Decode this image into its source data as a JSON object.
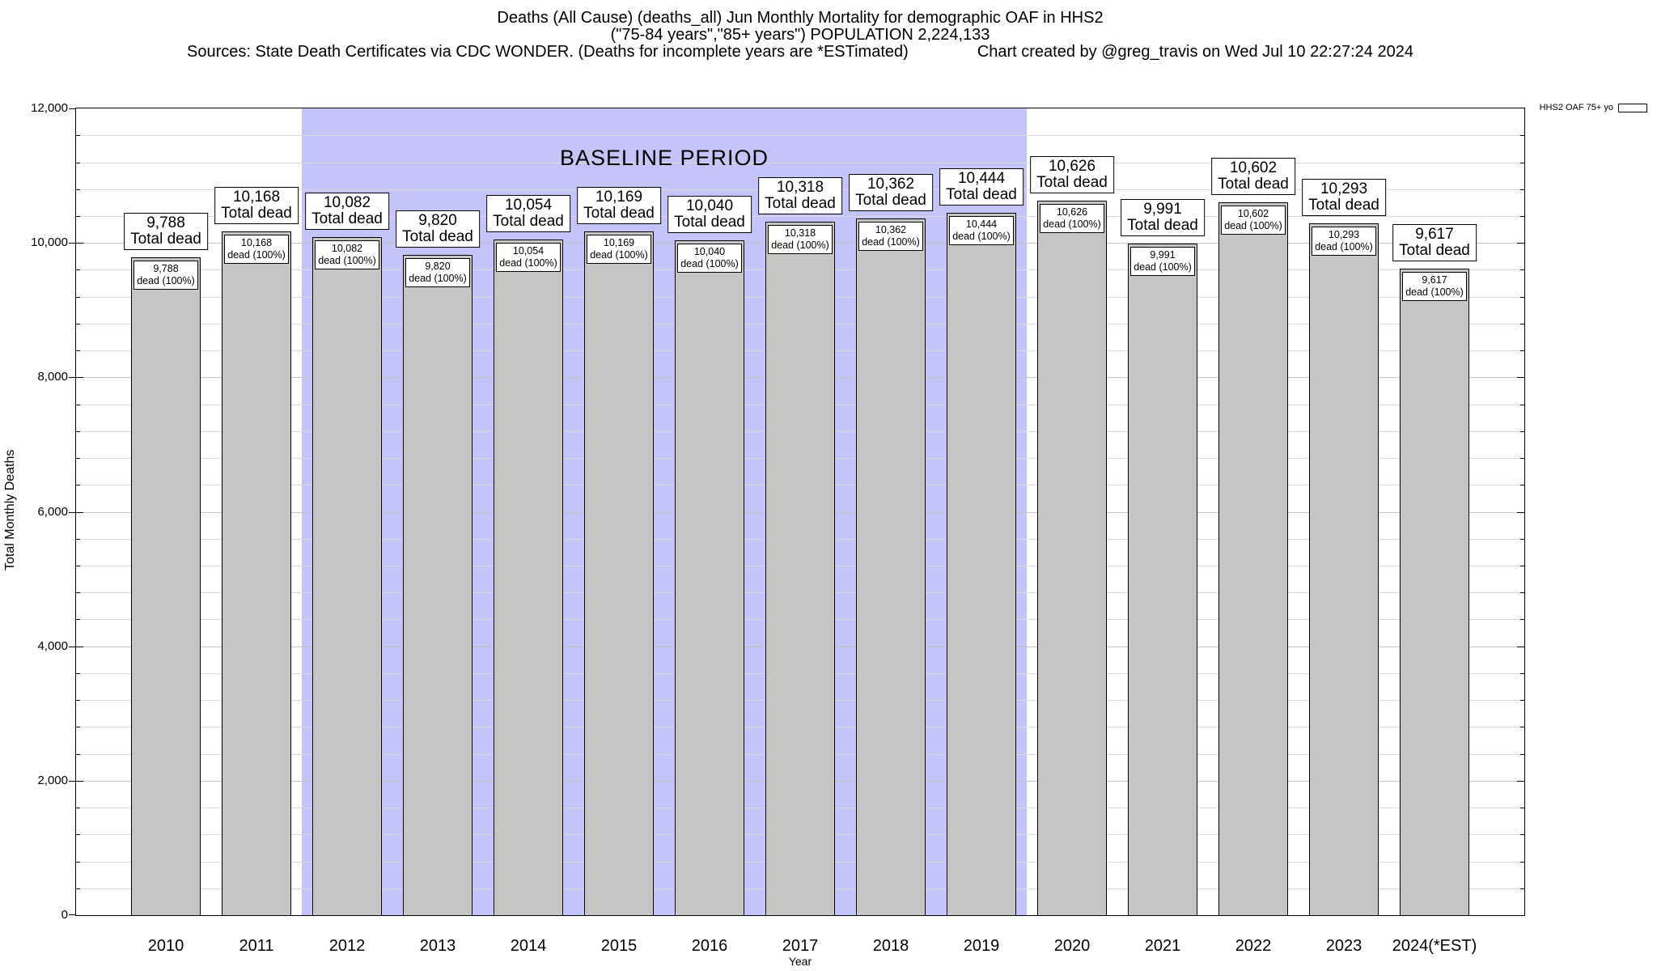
{
  "header": {
    "title_line1": "Deaths (All Cause) (deaths_all) Jun Monthly Mortality for demographic OAF in HHS2",
    "title_line2": "(\"75-84 years\",\"85+ years\") POPULATION 2,224,133",
    "sources": "Sources: State Death Certificates via CDC WONDER. (Deaths for incomplete years are *ESTimated)",
    "created_by": "Chart created by @greg_travis on Wed Jul 10 22:27:24 2024"
  },
  "legend": {
    "label": "HHS2 OAF 75+ yo"
  },
  "chart_data": {
    "type": "bar",
    "title": "Deaths (All Cause) (deaths_all) Jun Monthly Mortality for demographic OAF in HHS2",
    "subtitle": "(\"75-84 years\",\"85+ years\") POPULATION 2,224,133",
    "xlabel": "Year",
    "ylabel": "Total Monthly Deaths",
    "ylim": [
      0,
      12000
    ],
    "ytick_interval": 2000,
    "minor_tick_interval": 400,
    "ytick_labels": [
      "0",
      "2,000",
      "4,000",
      "6,000",
      "8,000",
      "10,000",
      "12,000"
    ],
    "grid": true,
    "legend_position": "top-right",
    "series_name": "HHS2 OAF 75+ yo",
    "categories": [
      "2010",
      "2011",
      "2012",
      "2013",
      "2014",
      "2015",
      "2016",
      "2017",
      "2018",
      "2019",
      "2020",
      "2021",
      "2022",
      "2023",
      "2024(*EST)"
    ],
    "values": [
      9788,
      10168,
      10082,
      9820,
      10054,
      10169,
      10040,
      10318,
      10362,
      10444,
      10626,
      9991,
      10602,
      10293,
      9617
    ],
    "bar_labels": [
      "9,788",
      "10,168",
      "10,082",
      "9,820",
      "10,054",
      "10,169",
      "10,040",
      "10,318",
      "10,362",
      "10,444",
      "10,626",
      "9,991",
      "10,602",
      "10,293",
      "9,617"
    ],
    "top_label_suffix": "Total dead",
    "inner_label_suffix": "dead (100%)",
    "baseline_band": {
      "label": "BASELINE PERIOD",
      "start_category": "2012",
      "end_category": "2019",
      "start_index": 2,
      "end_index": 9
    }
  },
  "colors": {
    "bar_fill": "#c6c6c6",
    "bar_border": "#000000",
    "baseline_band": "#c4c4f8",
    "grid_major": "#c3c3c3",
    "grid_minor": "#dadada",
    "axis": "#000000",
    "label_box_bg": "#ffffff"
  }
}
